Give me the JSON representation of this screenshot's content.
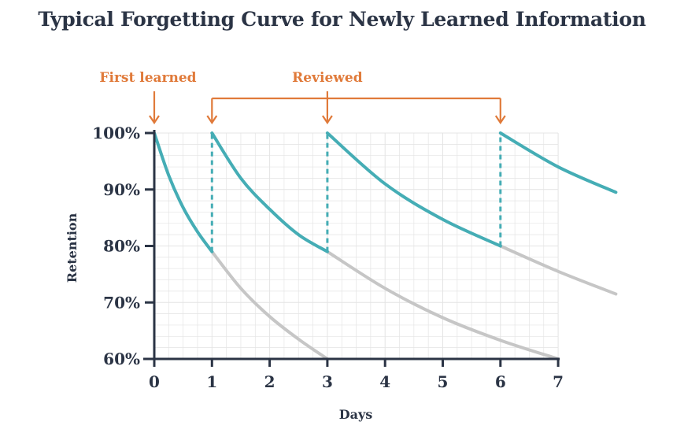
{
  "chart_data": {
    "type": "line",
    "title": "Typical Forgetting Curve for Newly Learned Information",
    "xlabel": "Days",
    "ylabel": "Retention",
    "xlim": [
      0,
      8
    ],
    "ylim": [
      60,
      100
    ],
    "x_ticks": [
      0,
      1,
      2,
      3,
      4,
      5,
      6,
      7
    ],
    "y_ticks": [
      "60%",
      "70%",
      "80%",
      "90%",
      "100%"
    ],
    "grid": true,
    "colors": {
      "reviewed": "#45adb5",
      "forgotten": "#c6c6c6",
      "annotation": "#e07a3a",
      "axis": "#2b3445",
      "grid": "#e4e4e4"
    },
    "series": [
      {
        "style": "teal",
        "x": [
          0,
          0.25,
          0.5,
          0.75,
          1
        ],
        "y": [
          100,
          92.5,
          86.8,
          82.5,
          79
        ]
      },
      {
        "style": "grey",
        "x": [
          1,
          1.5,
          2,
          2.5,
          3
        ],
        "y": [
          79,
          72.5,
          67.5,
          63.5,
          60
        ]
      },
      {
        "style": "teal",
        "x": [
          1,
          1.5,
          2,
          2.5,
          3
        ],
        "y": [
          100,
          92,
          86.5,
          82,
          79
        ]
      },
      {
        "style": "grey",
        "x": [
          3,
          4,
          5,
          6,
          7
        ],
        "y": [
          79,
          72.5,
          67.3,
          63.3,
          60
        ]
      },
      {
        "style": "teal",
        "x": [
          3,
          4,
          5,
          6
        ],
        "y": [
          100,
          91,
          84.7,
          80
        ]
      },
      {
        "style": "grey",
        "x": [
          6,
          7,
          8
        ],
        "y": [
          80,
          75.5,
          71.5
        ]
      },
      {
        "style": "teal",
        "x": [
          6,
          7,
          8
        ],
        "y": [
          100,
          94,
          89.5
        ]
      }
    ],
    "review_drops": [
      {
        "x": 1,
        "from": 79,
        "to": 100
      },
      {
        "x": 3,
        "from": 79,
        "to": 100
      },
      {
        "x": 6,
        "from": 80,
        "to": 100
      }
    ],
    "annotations": [
      {
        "label": "First learned",
        "x": 0
      },
      {
        "label": "Reviewed",
        "x": [
          1,
          3,
          6
        ]
      }
    ]
  }
}
